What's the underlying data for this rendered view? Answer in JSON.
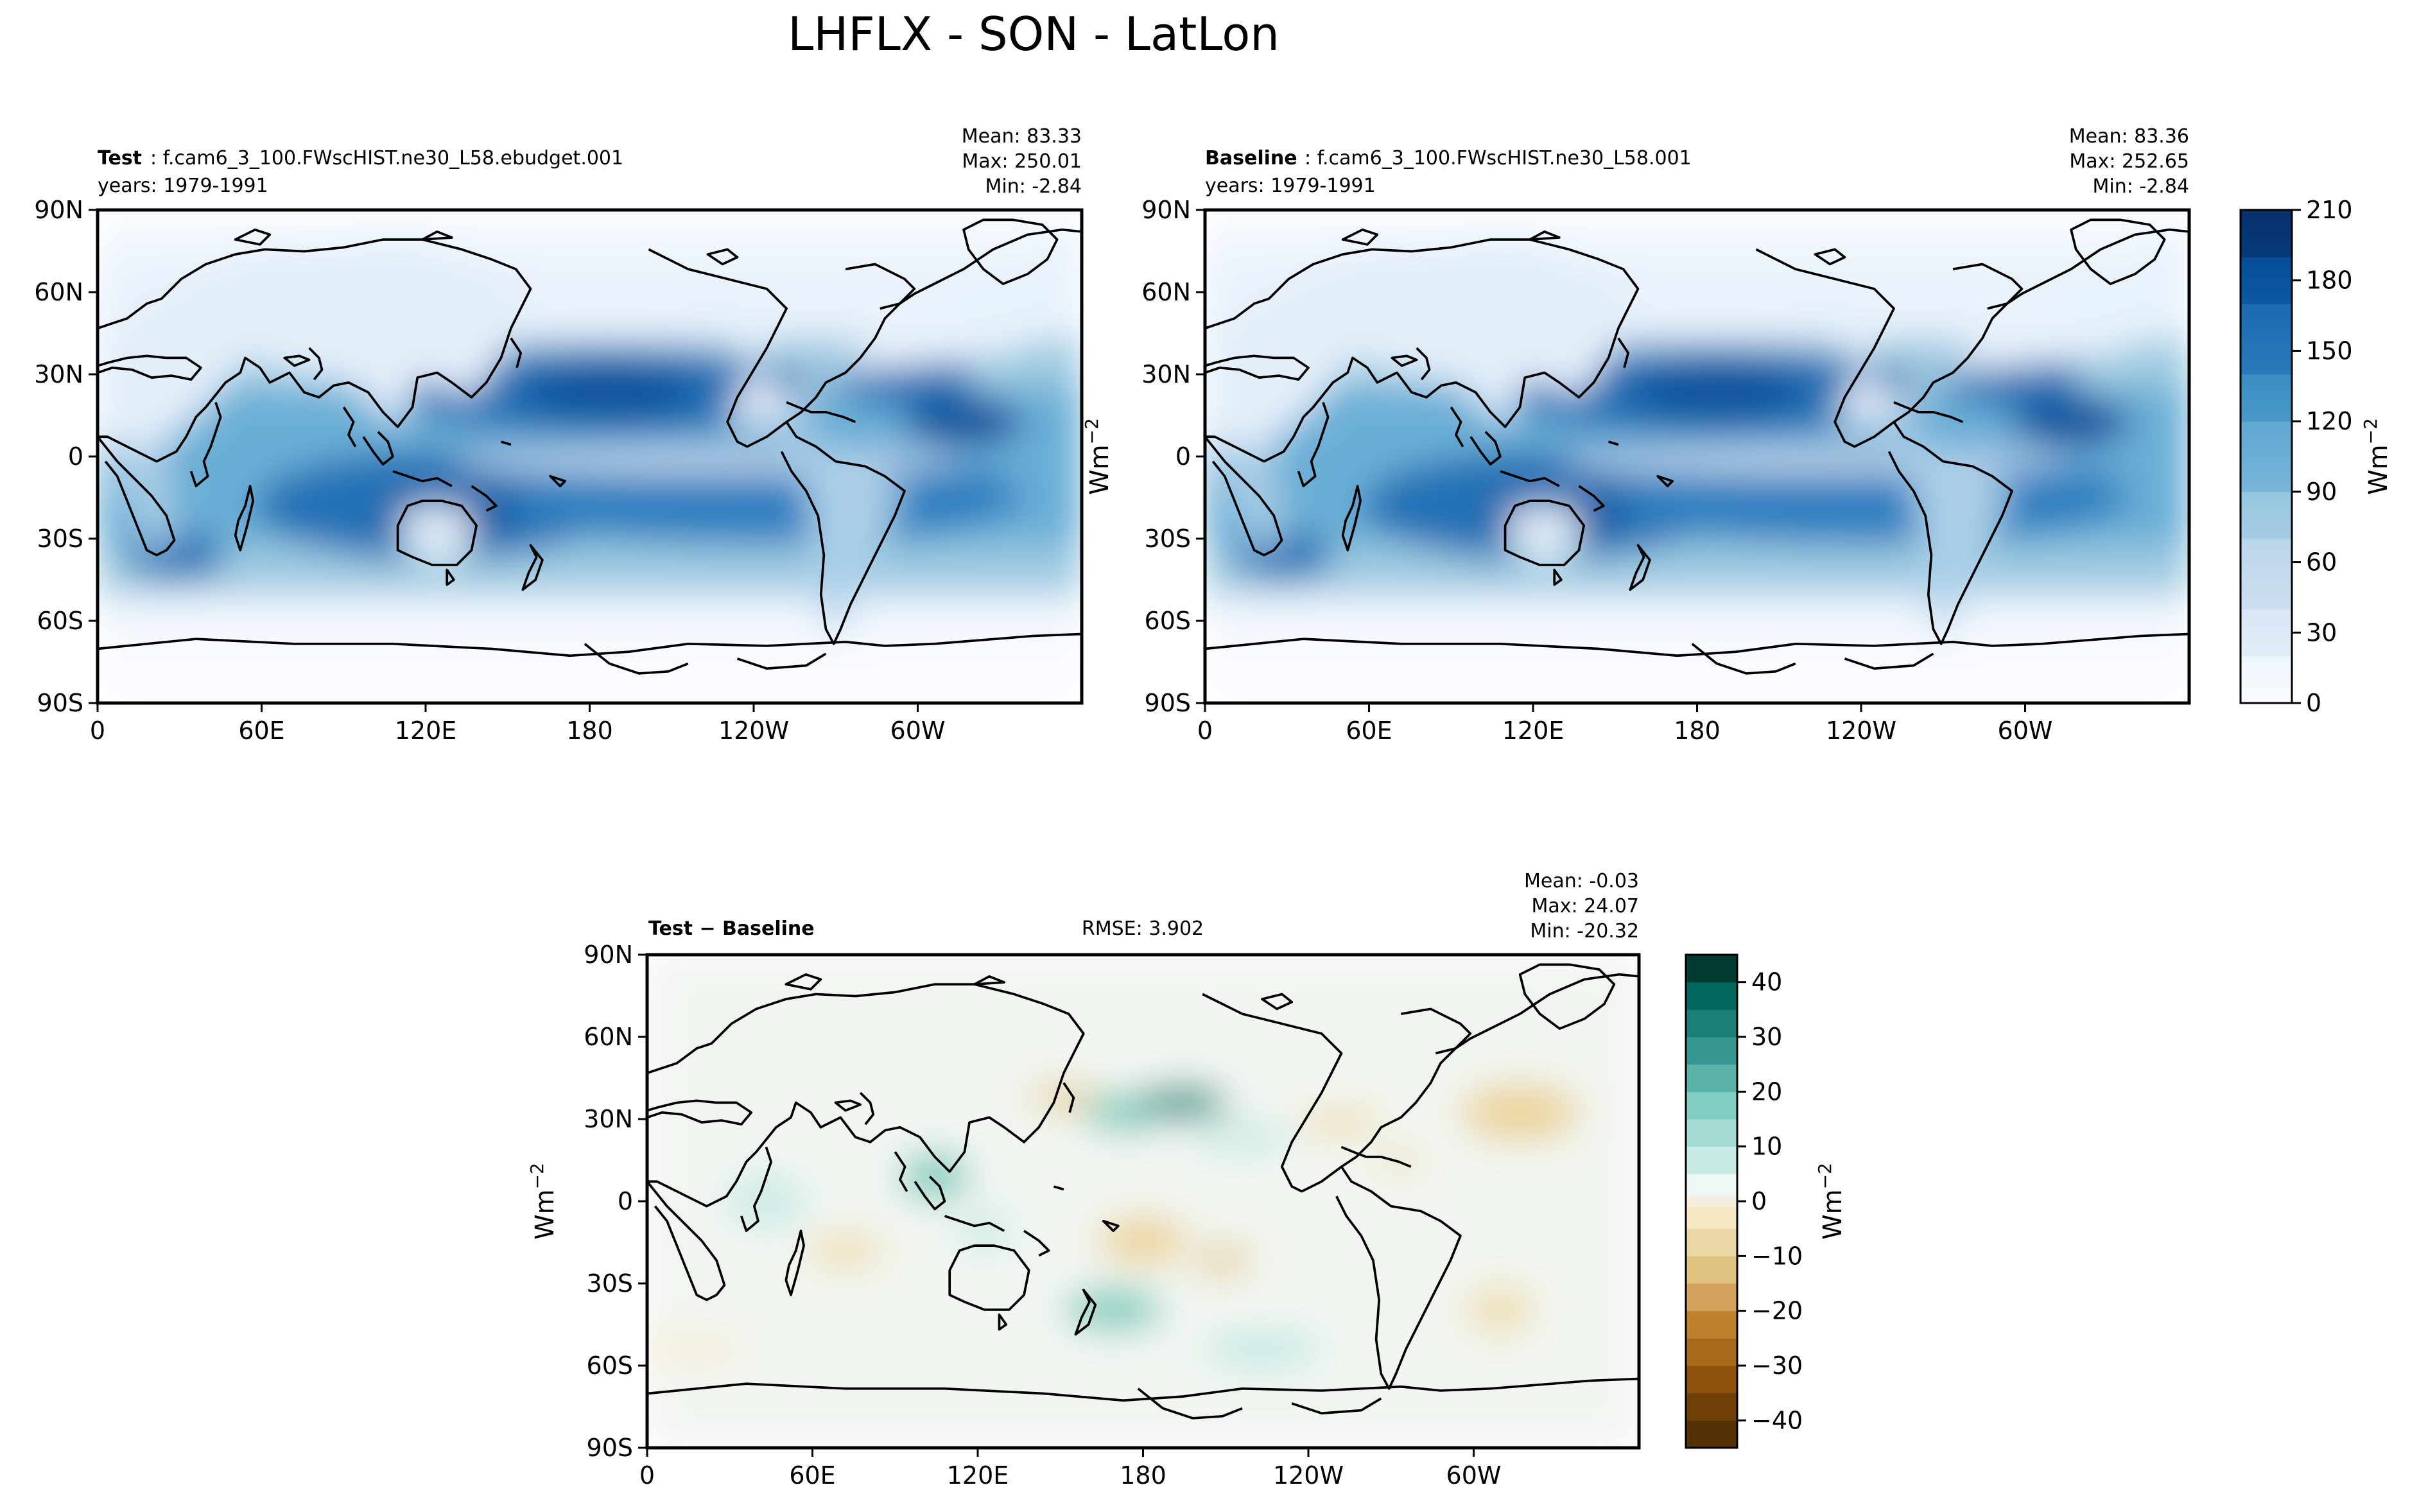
{
  "figure": {
    "title": "LHFLX - SON - LatLon"
  },
  "panels": {
    "test": {
      "label_bold": "Test",
      "label_rest": ": f.cam6_3_100.FWscHIST.ne30_L58.ebudget.001",
      "years": "years: 1979-1991",
      "mean": "Mean: 83.33",
      "max": "Max: 250.01",
      "min": "Min: -2.84"
    },
    "baseline": {
      "label_bold": "Baseline",
      "label_rest": ": f.cam6_3_100.FWscHIST.ne30_L58.001",
      "years": "years: 1979-1991",
      "mean": "Mean: 83.36",
      "max": "Max: 252.65",
      "min": "Min: -2.84"
    },
    "diff": {
      "label_bold": "Test − Baseline",
      "rmse": "RMSE: 3.902",
      "mean": "Mean: -0.03",
      "max": "Max: 24.07",
      "min": "Min: -20.32"
    }
  },
  "chart_data": [
    {
      "type": "heatmap",
      "title": "Test",
      "variable": "LHFLX",
      "season": "SON",
      "units": "Wm⁻²",
      "lat_ticks": [
        "90N",
        "60N",
        "30N",
        "0",
        "30S",
        "60S",
        "90S"
      ],
      "lon_ticks": [
        "0",
        "60E",
        "120E",
        "180",
        "120W",
        "60W"
      ],
      "stats": {
        "mean": 83.33,
        "max": 250.01,
        "min": -2.84
      },
      "colorbar": {
        "ticks": [
          0,
          30,
          60,
          90,
          120,
          150,
          180,
          210
        ],
        "range": [
          0,
          210
        ],
        "colors": [
          "#f7fbff",
          "#deebf7",
          "#c6dbef",
          "#9ecae1",
          "#6baed6",
          "#4292c6",
          "#2171b5",
          "#08519c",
          "#08306b"
        ]
      }
    },
    {
      "type": "heatmap",
      "title": "Baseline",
      "variable": "LHFLX",
      "season": "SON",
      "units": "Wm⁻²",
      "lat_ticks": [
        "90N",
        "60N",
        "30N",
        "0",
        "30S",
        "60S",
        "90S"
      ],
      "lon_ticks": [
        "0",
        "60E",
        "120E",
        "180",
        "120W",
        "60W"
      ],
      "stats": {
        "mean": 83.36,
        "max": 252.65,
        "min": -2.84
      }
    },
    {
      "type": "heatmap",
      "title": "Test − Baseline",
      "variable": "LHFLX",
      "season": "SON",
      "units": "Wm⁻²",
      "lat_ticks": [
        "90N",
        "60N",
        "30N",
        "0",
        "30S",
        "60S",
        "90S"
      ],
      "lon_ticks": [
        "0",
        "60E",
        "120E",
        "180",
        "120W",
        "60W"
      ],
      "stats": {
        "mean": -0.03,
        "max": 24.07,
        "min": -20.32,
        "rmse": 3.902
      },
      "colorbar": {
        "ticks": [
          40,
          30,
          20,
          10,
          0,
          -10,
          -20,
          -30,
          -40
        ],
        "range": [
          -45,
          45
        ],
        "colors": [
          "#003c30",
          "#01665e",
          "#35978f",
          "#80cdc1",
          "#c7eae5",
          "#eef7f4",
          "#f6efe0",
          "#f6e8c3",
          "#dfc27d",
          "#bf812d",
          "#8c510a",
          "#543005"
        ]
      }
    }
  ]
}
